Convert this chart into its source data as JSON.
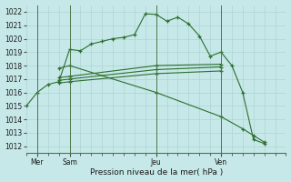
{
  "background_color": "#c6e8e8",
  "grid_color": "#a8d0d0",
  "line_color": "#2d6e2d",
  "xlabel": "Pression niveau de la mer( hPa )",
  "ylim": [
    1011.5,
    1022.5
  ],
  "yticks": [
    1012,
    1013,
    1014,
    1015,
    1016,
    1017,
    1018,
    1019,
    1020,
    1021,
    1022
  ],
  "day_labels": [
    "Mer",
    "Sam",
    "Jeu",
    "Ven"
  ],
  "day_positions": [
    1,
    4,
    12,
    18
  ],
  "xlim": [
    0,
    24
  ],
  "series": [
    {
      "x": [
        0,
        1,
        2,
        3,
        4,
        5,
        6,
        7,
        8,
        9,
        10,
        11,
        12,
        13,
        14,
        15,
        16,
        17,
        18,
        19,
        20,
        21,
        22
      ],
      "y": [
        1015.0,
        1016.0,
        1016.6,
        1016.8,
        1019.2,
        1019.1,
        1019.6,
        1019.8,
        1020.0,
        1020.1,
        1020.3,
        1021.85,
        1021.8,
        1021.3,
        1021.6,
        1021.1,
        1020.2,
        1018.7,
        1019.0,
        1018.0,
        1016.0,
        1012.5,
        1012.2
      ]
    },
    {
      "x": [
        3,
        4,
        12,
        18
      ],
      "y": [
        1017.1,
        1017.2,
        1018.0,
        1018.1
      ]
    },
    {
      "x": [
        3,
        4,
        12,
        18
      ],
      "y": [
        1016.9,
        1017.0,
        1017.7,
        1017.9
      ]
    },
    {
      "x": [
        3,
        4,
        12,
        18
      ],
      "y": [
        1016.7,
        1016.8,
        1017.4,
        1017.6
      ]
    },
    {
      "x": [
        3,
        4,
        12,
        18,
        20,
        21,
        22
      ],
      "y": [
        1017.8,
        1018.0,
        1016.0,
        1014.2,
        1013.3,
        1012.8,
        1012.3
      ]
    }
  ]
}
